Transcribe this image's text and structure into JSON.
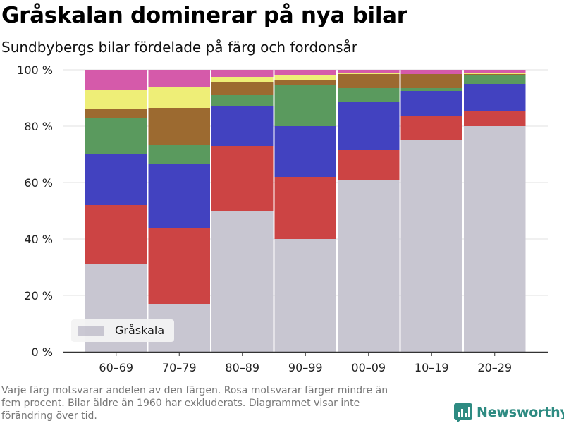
{
  "header": {
    "title": "Gråskalan dominerar på nya bilar",
    "subtitle": "Sundbybergs bilar fördelade på färg och fordonsår"
  },
  "footnote": "Varje färg motsvarar andelen av den färgen. Rosa motsvarar färger mindre än\nfem procent. Bilar äldre än 1960 har exkluderats. Diagrammet visar inte\nförändring över tid.",
  "brand": {
    "name": "Newsworthy"
  },
  "legend": {
    "label": "Gråskala",
    "position": "bottom-left"
  },
  "chart_data": {
    "type": "bar",
    "stacked": true,
    "categories": [
      "60–69",
      "70–79",
      "80–89",
      "90–99",
      "00–09",
      "10–19",
      "20–29"
    ],
    "ylim": [
      0,
      100
    ],
    "yticks": [
      0,
      20,
      40,
      60,
      80,
      100
    ],
    "ytick_labels": [
      "0 %",
      "20 %",
      "40 %",
      "60 %",
      "80 %",
      "100 %"
    ],
    "grid": "horizontal",
    "series": [
      {
        "name": "Gråskala",
        "color": "#c8c6d1",
        "values": [
          31,
          17,
          50,
          40,
          61,
          75,
          80
        ]
      },
      {
        "color": "#cc4444",
        "values": [
          21,
          27,
          23,
          22,
          10.5,
          8.5,
          5.5
        ]
      },
      {
        "color": "#4242c0",
        "values": [
          18,
          22.5,
          14,
          18,
          17,
          9,
          9.5
        ]
      },
      {
        "color": "#5a9a5e",
        "values": [
          13,
          7,
          4,
          14.5,
          5,
          1,
          3
        ]
      },
      {
        "color": "#9c6a30",
        "values": [
          3,
          13,
          4.5,
          2,
          5,
          5,
          0.5
        ]
      },
      {
        "color": "#eeee77",
        "values": [
          7,
          7.5,
          2,
          1.5,
          0.5,
          0,
          0.5
        ]
      },
      {
        "color": "#d55aaa",
        "values": [
          7,
          6,
          2.5,
          2,
          1,
          1.5,
          1
        ]
      }
    ]
  }
}
